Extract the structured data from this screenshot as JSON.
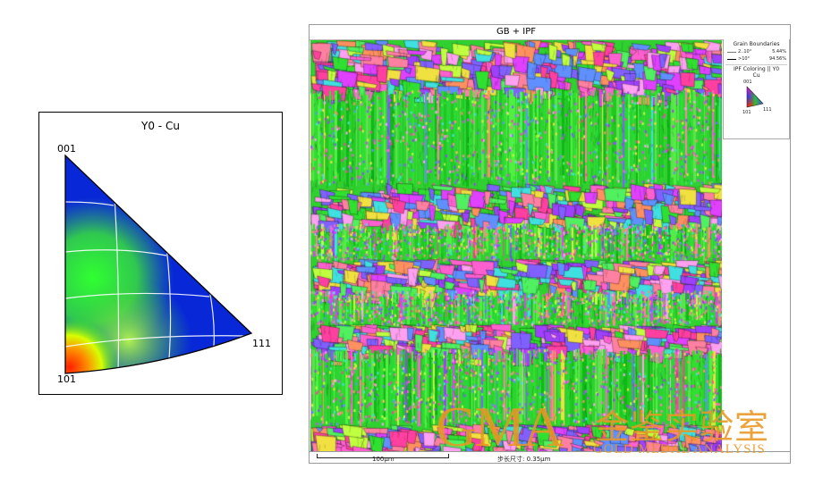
{
  "pole_figure": {
    "title": "Y0 - Cu",
    "corner_labels": {
      "top": "001",
      "bottom_left": "101",
      "right": "111"
    }
  },
  "map": {
    "title": "GB + IPF",
    "legend": {
      "grain_boundaries_title": "Grain Boundaries",
      "rows": [
        {
          "range": "2..10°",
          "percent": "5.44%"
        },
        {
          "range": ">10°",
          "percent": "94.56%"
        }
      ],
      "ipf_title": "IPF Coloring || Y0",
      "ipf_phase": "Cu",
      "mini_labels": {
        "top": "001",
        "bottom_left": "101",
        "right": "111"
      }
    },
    "scale_bar_label": "100μm",
    "step_size_label": "步长尺寸: 0.35μm"
  },
  "watermark": {
    "logo": "GMA",
    "chinese_name": "金鉴实验室",
    "english_name": "GOLD MEDAL ANALYSIS"
  },
  "colors": {
    "ipf_001": "#1030d0",
    "ipf_101": "#e02010",
    "ipf_111": "#2060ff",
    "ipf_green": "#30e030",
    "watermark": "#e89622"
  }
}
